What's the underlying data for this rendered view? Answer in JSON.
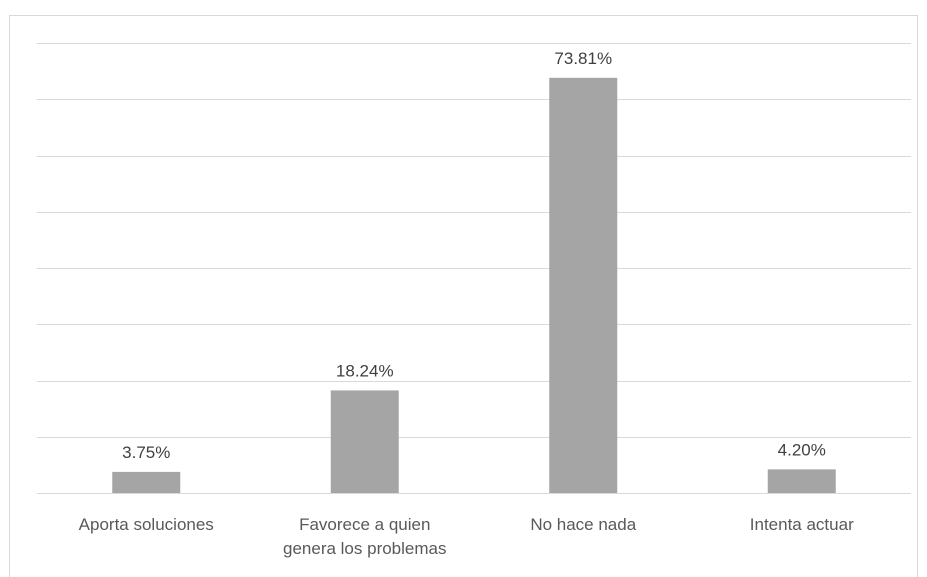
{
  "chart_data": {
    "type": "bar",
    "categories": [
      "Aporta soluciones",
      "Favorece a quien genera los problemas",
      "No hace nada",
      "Intenta actuar"
    ],
    "category_lines": [
      [
        "Aporta soluciones"
      ],
      [
        "Favorece a quien",
        "genera los problemas"
      ],
      [
        "No hace nada"
      ],
      [
        "Intenta actuar"
      ]
    ],
    "values": [
      3.75,
      18.24,
      73.81,
      4.2
    ],
    "data_labels": [
      "3.75%",
      "18.24%",
      "73.81%",
      "4.20%"
    ],
    "ylim": [
      0,
      80
    ],
    "gridlines": true,
    "legend": "none",
    "bar_color": "#a5a5a5",
    "grid_color": "#d9d9d9"
  }
}
